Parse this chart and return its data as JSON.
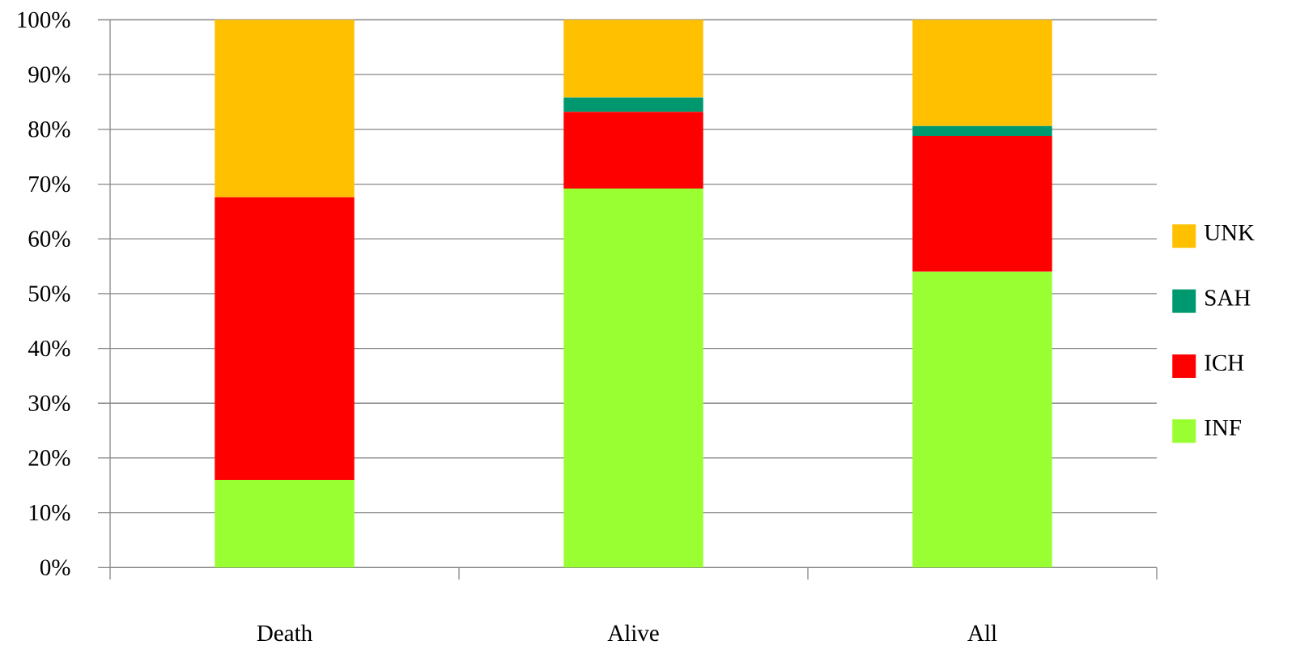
{
  "chart_data": {
    "type": "bar",
    "stacked": true,
    "categories": [
      "Death",
      "Alive",
      "All"
    ],
    "series": [
      {
        "name": "INF",
        "color": "#99ff33",
        "values": [
          16.0,
          69.2,
          54.0
        ]
      },
      {
        "name": "ICH",
        "color": "#ff0000",
        "values": [
          51.6,
          14.0,
          24.8
        ]
      },
      {
        "name": "SAH",
        "color": "#00996f",
        "values": [
          0,
          2.6,
          1.8
        ]
      },
      {
        "name": "UNK",
        "color": "#ffc000",
        "values": [
          32.4,
          14.2,
          19.4
        ]
      }
    ],
    "ylim": [
      0,
      100
    ],
    "yticks": [
      {
        "value": 0,
        "label": "0%"
      },
      {
        "value": 10,
        "label": "10%"
      },
      {
        "value": 20,
        "label": "20%"
      },
      {
        "value": 30,
        "label": "30%"
      },
      {
        "value": 40,
        "label": "40%"
      },
      {
        "value": 50,
        "label": "50%"
      },
      {
        "value": 60,
        "label": "60%"
      },
      {
        "value": 70,
        "label": "70%"
      },
      {
        "value": 80,
        "label": "80%"
      },
      {
        "value": 90,
        "label": "90%"
      },
      {
        "value": 100,
        "label": "100%"
      }
    ],
    "grid": "y",
    "legend": "right"
  }
}
